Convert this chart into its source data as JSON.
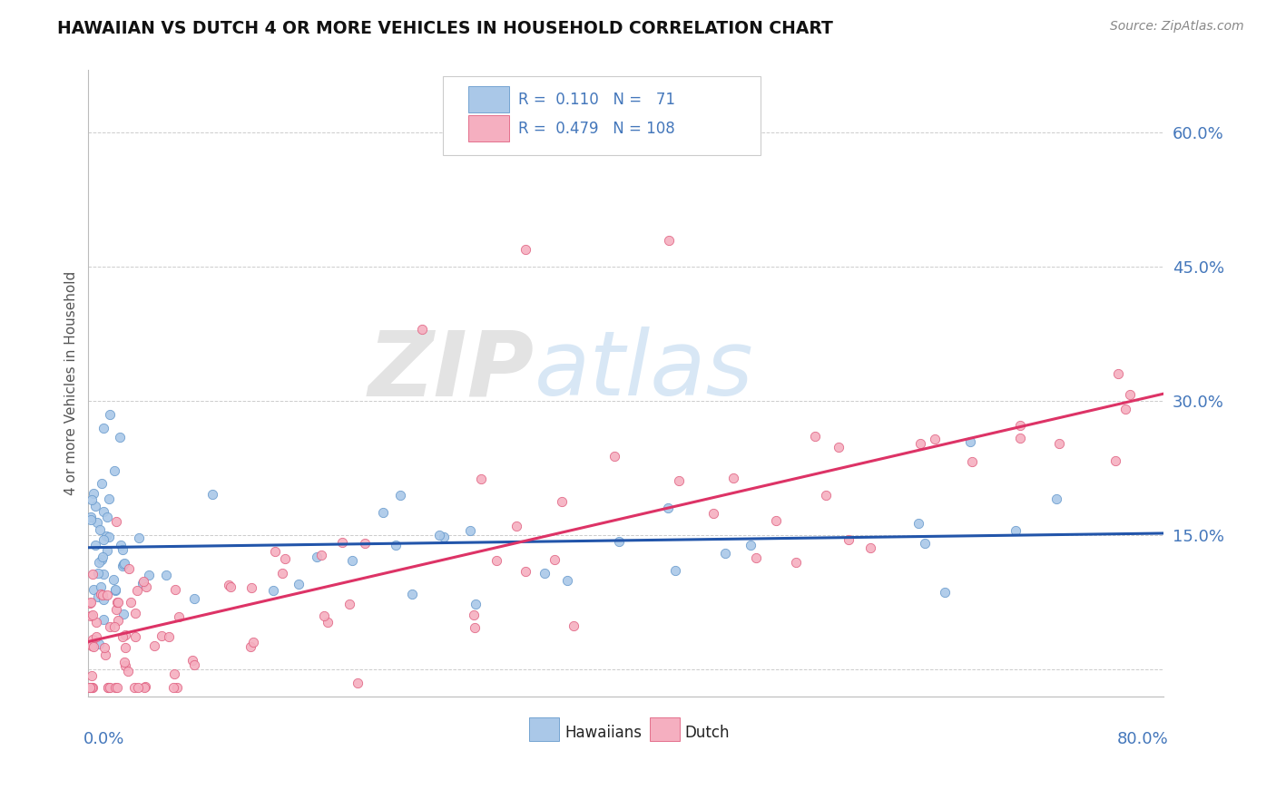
{
  "title": "HAWAIIAN VS DUTCH 4 OR MORE VEHICLES IN HOUSEHOLD CORRELATION CHART",
  "source": "Source: ZipAtlas.com",
  "ylabel": "4 or more Vehicles in Household",
  "xmin": 0.0,
  "xmax": 80.0,
  "ymin": -3.0,
  "ymax": 67.0,
  "ytick_vals": [
    0,
    15,
    30,
    45,
    60
  ],
  "ytick_labels": [
    "",
    "15.0%",
    "30.0%",
    "45.0%",
    "60.0%"
  ],
  "legend_hawaiians_R": "0.110",
  "legend_hawaiians_N": "71",
  "legend_dutch_R": "0.479",
  "legend_dutch_N": "108",
  "color_hawaiians_face": "#aac8e8",
  "color_hawaiians_edge": "#6699cc",
  "color_dutch_face": "#f5afc0",
  "color_dutch_edge": "#e06080",
  "color_line_hawaiians": "#2255aa",
  "color_line_dutch": "#dd3366",
  "watermark_zip": "ZIP",
  "watermark_atlas": "atlas",
  "background_color": "#ffffff",
  "grid_color": "#cccccc",
  "title_color": "#111111",
  "tick_color": "#4477bb",
  "source_color": "#888888"
}
